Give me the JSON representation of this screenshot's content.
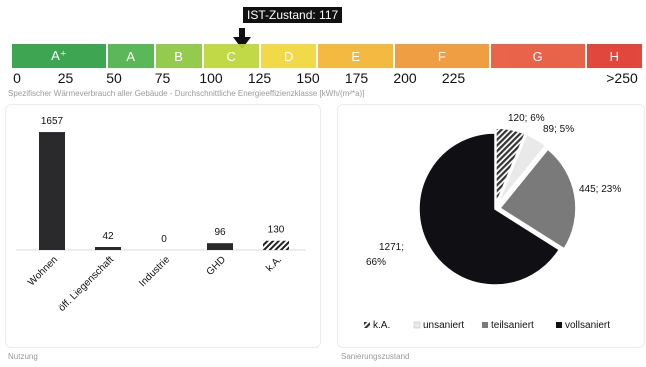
{
  "marker": {
    "label": "IST-Zustand: 117",
    "value": 117
  },
  "scale": {
    "classes": [
      {
        "label": "A⁺",
        "from": 0,
        "to": 50,
        "color": "#2e9f44"
      },
      {
        "label": "A",
        "from": 50,
        "to": 75,
        "color": "#4db34a"
      },
      {
        "label": "B",
        "from": 75,
        "to": 100,
        "color": "#8cc63e"
      },
      {
        "label": "C",
        "from": 100,
        "to": 130,
        "color": "#bcd538"
      },
      {
        "label": "D",
        "from": 130,
        "to": 160,
        "color": "#f1d638"
      },
      {
        "label": "E",
        "from": 160,
        "to": 200,
        "color": "#f2b431"
      },
      {
        "label": "F",
        "from": 200,
        "to": 250,
        "color": "#ef9635"
      },
      {
        "label": "G",
        "from": 250,
        "to": 300,
        "color": "#e8563c"
      },
      {
        "label": "H",
        "from": 300,
        "to": 330,
        "color": "#e0382d"
      }
    ],
    "ticks": [
      "0",
      "25",
      "50",
      "75",
      "100",
      "125",
      "150",
      "175",
      "200",
      "225",
      ">250"
    ],
    "caption": "Spezifischer Wärmeverbrauch aller Gebäude - Durchschnittliche Energieeffizienzklasse [kWh/(m²*a)]"
  },
  "chart_data": [
    {
      "type": "bar",
      "categories": [
        "Wohnen",
        "öff. Liegenschaft",
        "Industrie",
        "GHD",
        "k.A."
      ],
      "values": [
        1657,
        42,
        0,
        96,
        130
      ],
      "data_labels": [
        "1657",
        "42",
        "0",
        "96",
        "130"
      ],
      "ylim": [
        0,
        1700
      ],
      "caption": "Nutzung"
    },
    {
      "type": "pie",
      "slices": [
        {
          "name": "k.A.",
          "value": 120,
          "label": "120; 6%",
          "color": "#444444",
          "pattern": "hatch"
        },
        {
          "name": "unsaniert",
          "value": 89,
          "label": "89; 5%",
          "color": "#e9e9e9"
        },
        {
          "name": "teilsaniert",
          "value": 445,
          "label": "445; 23%",
          "color": "#7a7a7a"
        },
        {
          "name": "vollsaniert",
          "value": 1271,
          "label_line1": "1271;",
          "label_line2": "66%",
          "color": "#0f0f14"
        }
      ],
      "legend": [
        "k.A.",
        "unsaniert",
        "teilsaniert",
        "vollsaniert"
      ],
      "legend_position": "bottom",
      "caption": "Sanierungszustand"
    }
  ]
}
